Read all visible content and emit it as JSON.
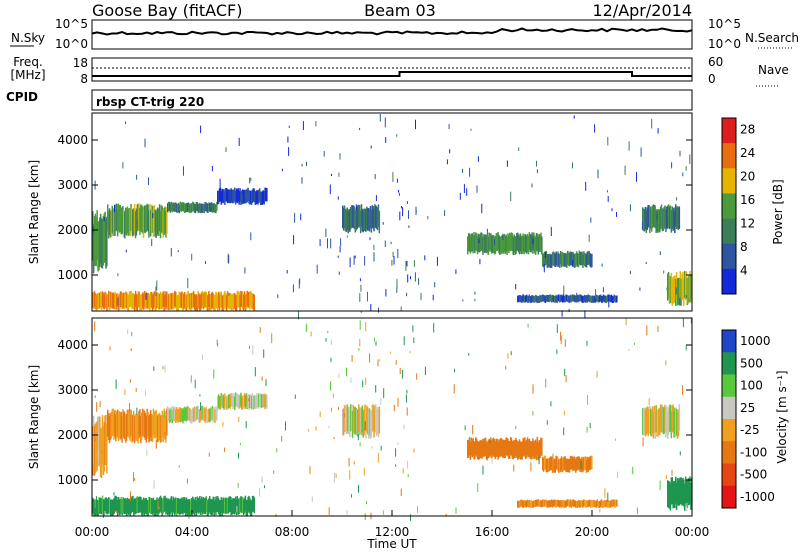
{
  "header": {
    "station": "Goose Bay (fitACF)",
    "beam": "Beam 03",
    "date": "12/Apr/2014"
  },
  "summary_panels": {
    "nsky_label": "N.Sky",
    "nsky_ticks": [
      "10^5",
      "10^0"
    ],
    "nsearch_label": "N.Search",
    "nsearch_ticks": [
      "10^5",
      "10^0"
    ],
    "freq_label": "Freq.",
    "freq_unit": "[MHz]",
    "freq_ticks": [
      "18",
      "8"
    ],
    "nave_label": "Nave",
    "nave_ticks": [
      "60",
      "0"
    ],
    "cpid_label": "CPID",
    "cpid_text": "rbsp CT-trig 220"
  },
  "chart_data": [
    {
      "type": "heatmap",
      "name": "power-panel",
      "ylabel": "Slant Range [km]",
      "yticks": [
        "1000",
        "2000",
        "3000",
        "4000"
      ],
      "ylim": [
        200,
        4600
      ],
      "xlim": [
        0,
        24
      ],
      "colorbar": {
        "label": "Power [dB]",
        "ticks": [
          "4",
          "8",
          "12",
          "16",
          "20",
          "24",
          "28"
        ],
        "colors": [
          "#1428dc",
          "#2d55a0",
          "#3c7d5a",
          "#4a9b3c",
          "#e6b400",
          "#e86e10",
          "#dc1e1e"
        ]
      },
      "regions": [
        {
          "t0": 0.0,
          "t1": 0.6,
          "r0": 1200,
          "r1": 2300,
          "power": 14
        },
        {
          "t0": 0.6,
          "t1": 3.0,
          "r0": 1900,
          "r1": 2500,
          "power": 16
        },
        {
          "t0": 3.0,
          "t1": 5.0,
          "r0": 2400,
          "r1": 2600,
          "power": 12
        },
        {
          "t0": 5.0,
          "t1": 7.0,
          "r0": 2600,
          "r1": 2900,
          "power": 6
        },
        {
          "t0": 10.0,
          "t1": 11.5,
          "r0": 2000,
          "r1": 2500,
          "power": 10
        },
        {
          "t0": 15.0,
          "t1": 18.0,
          "r0": 1500,
          "r1": 1900,
          "power": 14
        },
        {
          "t0": 18.0,
          "t1": 20.0,
          "r0": 1200,
          "r1": 1500,
          "power": 12
        },
        {
          "t0": 22.0,
          "t1": 23.5,
          "r0": 2000,
          "r1": 2500,
          "power": 12
        },
        {
          "t0": 0.0,
          "t1": 6.5,
          "r0": 250,
          "r1": 600,
          "power": 22
        },
        {
          "t0": 17.0,
          "t1": 21.0,
          "r0": 400,
          "r1": 550,
          "power": 8
        },
        {
          "t0": 23.0,
          "t1": 24.0,
          "r0": 400,
          "r1": 1000,
          "power": 18
        }
      ]
    },
    {
      "type": "heatmap",
      "name": "velocity-panel",
      "ylabel": "Slant Range [km]",
      "yticks": [
        "1000",
        "2000",
        "3000",
        "4000"
      ],
      "ylim": [
        200,
        4600
      ],
      "xlim": [
        0,
        24
      ],
      "xlabel": "Time UT",
      "xticks": [
        "00:00",
        "04:00",
        "08:00",
        "12:00",
        "16:00",
        "20:00",
        "00:00"
      ],
      "colorbar": {
        "label": "Velocity [m s⁻¹]",
        "ticks": [
          "1000",
          "500",
          "100",
          "25",
          "-25",
          "-100",
          "-500",
          "-1000"
        ],
        "colors": [
          "#1e46c8",
          "#1e9650",
          "#5ac83c",
          "#c8c8c0",
          "#f0a01e",
          "#e67814",
          "#e64614",
          "#e61414"
        ]
      },
      "regions": [
        {
          "t0": 0.0,
          "t1": 0.6,
          "r0": 1200,
          "r1": 2300,
          "velocity": -60
        },
        {
          "t0": 0.6,
          "t1": 3.0,
          "r0": 1900,
          "r1": 2500,
          "velocity": -100
        },
        {
          "t0": 3.0,
          "t1": 5.0,
          "r0": 2300,
          "r1": 2600,
          "velocity": 0
        },
        {
          "t0": 5.0,
          "t1": 7.0,
          "r0": 2600,
          "r1": 2900,
          "velocity": 0
        },
        {
          "t0": 10.0,
          "t1": 11.5,
          "r0": 2000,
          "r1": 2600,
          "velocity": 0
        },
        {
          "t0": 15.0,
          "t1": 18.0,
          "r0": 1500,
          "r1": 1900,
          "velocity": -300
        },
        {
          "t0": 18.0,
          "t1": 20.0,
          "r0": 1200,
          "r1": 1500,
          "velocity": -150
        },
        {
          "t0": 22.0,
          "t1": 23.5,
          "r0": 2000,
          "r1": 2600,
          "velocity": 0
        },
        {
          "t0": 0.0,
          "t1": 6.5,
          "r0": 250,
          "r1": 600,
          "velocity": 150
        },
        {
          "t0": 17.0,
          "t1": 21.0,
          "r0": 400,
          "r1": 550,
          "velocity": -120
        },
        {
          "t0": 23.0,
          "t1": 24.0,
          "r0": 400,
          "r1": 1000,
          "velocity": 300
        }
      ]
    }
  ]
}
